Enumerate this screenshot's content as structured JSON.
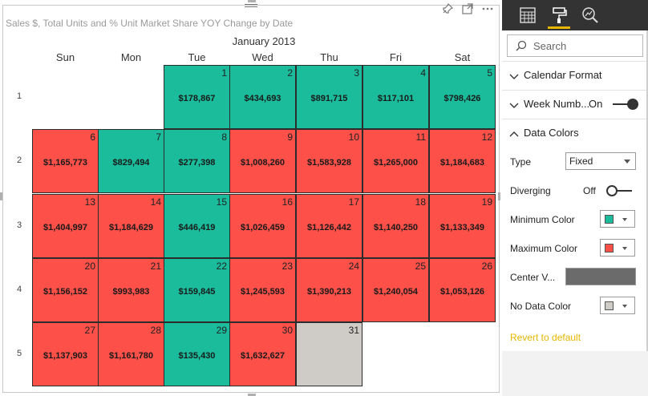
{
  "visual": {
    "title": "Sales $, Total Units and % Unit Market Share YOY Change by Date",
    "month": "January 2013",
    "days_of_week": [
      "Sun",
      "Mon",
      "Tue",
      "Wed",
      "Thu",
      "Fri",
      "Sat"
    ],
    "week_numbers": [
      "1",
      "2",
      "3",
      "4",
      "5"
    ],
    "colors": {
      "min": "#1abc9c",
      "max": "#fd5049",
      "no_data": "#cfcbc6"
    },
    "cells": [
      {
        "day": "1",
        "value": "$178,867",
        "fill": "min"
      },
      {
        "day": "2",
        "value": "$434,693",
        "fill": "min"
      },
      {
        "day": "3",
        "value": "$891,715",
        "fill": "min"
      },
      {
        "day": "4",
        "value": "$117,101",
        "fill": "min"
      },
      {
        "day": "5",
        "value": "$798,426",
        "fill": "min"
      },
      {
        "day": "6",
        "value": "$1,165,773",
        "fill": "max"
      },
      {
        "day": "7",
        "value": "$829,494",
        "fill": "min"
      },
      {
        "day": "8",
        "value": "$277,398",
        "fill": "min"
      },
      {
        "day": "9",
        "value": "$1,008,260",
        "fill": "max"
      },
      {
        "day": "10",
        "value": "$1,583,928",
        "fill": "max"
      },
      {
        "day": "11",
        "value": "$1,265,000",
        "fill": "max"
      },
      {
        "day": "12",
        "value": "$1,184,683",
        "fill": "max"
      },
      {
        "day": "13",
        "value": "$1,404,997",
        "fill": "max"
      },
      {
        "day": "14",
        "value": "$1,184,629",
        "fill": "max"
      },
      {
        "day": "15",
        "value": "$446,419",
        "fill": "min"
      },
      {
        "day": "16",
        "value": "$1,026,459",
        "fill": "max"
      },
      {
        "day": "17",
        "value": "$1,126,442",
        "fill": "max"
      },
      {
        "day": "18",
        "value": "$1,140,250",
        "fill": "max"
      },
      {
        "day": "19",
        "value": "$1,133,349",
        "fill": "max"
      },
      {
        "day": "20",
        "value": "$1,156,152",
        "fill": "max"
      },
      {
        "day": "21",
        "value": "$993,983",
        "fill": "max"
      },
      {
        "day": "22",
        "value": "$159,845",
        "fill": "min"
      },
      {
        "day": "23",
        "value": "$1,245,593",
        "fill": "max"
      },
      {
        "day": "24",
        "value": "$1,390,213",
        "fill": "max"
      },
      {
        "day": "25",
        "value": "$1,240,054",
        "fill": "max"
      },
      {
        "day": "26",
        "value": "$1,053,126",
        "fill": "max"
      },
      {
        "day": "27",
        "value": "$1,137,903",
        "fill": "max"
      },
      {
        "day": "28",
        "value": "$1,161,780",
        "fill": "max"
      },
      {
        "day": "29",
        "value": "$135,430",
        "fill": "min"
      },
      {
        "day": "30",
        "value": "$1,632,627",
        "fill": "max"
      },
      {
        "day": "31",
        "value": "",
        "fill": "no_data"
      }
    ]
  },
  "pane": {
    "search_placeholder": "Search",
    "sections": {
      "calendar_format": "Calendar Format",
      "week_numbers": "Week Numb...",
      "week_numbers_state": "On",
      "data_colors": "Data Colors"
    },
    "type_label": "Type",
    "type_value": "Fixed",
    "diverging_label": "Diverging",
    "diverging_state": "Off",
    "min_color_label": "Minimum Color",
    "max_color_label": "Maximum Color",
    "center_label": "Center V...",
    "no_data_label": "No Data Color",
    "revert_label": "Revert to default",
    "swatches": {
      "min": "#1abc9c",
      "max": "#fd5049",
      "no_data": "#cfcbc6"
    }
  }
}
